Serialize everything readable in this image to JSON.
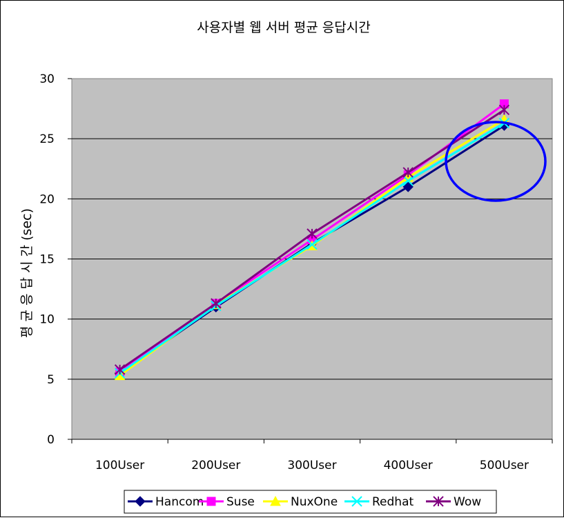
{
  "chart_data": {
    "type": "line",
    "title": "사용자별 웹 서버 평균 응답시간",
    "xlabel": "",
    "ylabel": "평 균  응 답 시 간 (sec)",
    "categories": [
      "100User",
      "200User",
      "300User",
      "400User",
      "500User"
    ],
    "ylim": [
      0,
      30
    ],
    "yticks": [
      "0",
      "5",
      "10",
      "15",
      "20",
      "25",
      "30"
    ],
    "grid": true,
    "legend_position": "bottom",
    "series": [
      {
        "name": "Hancom",
        "color": "#000080",
        "marker": "diamond",
        "values": [
          5.5,
          11.0,
          16.3,
          21.0,
          26.1
        ]
      },
      {
        "name": "Suse",
        "color": "#ff00ff",
        "marker": "square",
        "values": [
          5.6,
          11.3,
          16.6,
          22.0,
          27.9
        ]
      },
      {
        "name": "NuxOne",
        "color": "#ffff00",
        "marker": "triangle",
        "values": [
          5.3,
          11.2,
          16.1,
          21.8,
          26.6
        ]
      },
      {
        "name": "Redhat",
        "color": "#00ffff",
        "marker": "x",
        "values": [
          5.5,
          11.1,
          16.2,
          21.5,
          26.3
        ]
      },
      {
        "name": "Wow",
        "color": "#800080",
        "marker": "star",
        "values": [
          5.8,
          11.3,
          17.1,
          22.2,
          27.4
        ]
      }
    ],
    "annotation": {
      "shape": "ellipse",
      "color": "#0000ff",
      "around_category": "500User"
    }
  }
}
